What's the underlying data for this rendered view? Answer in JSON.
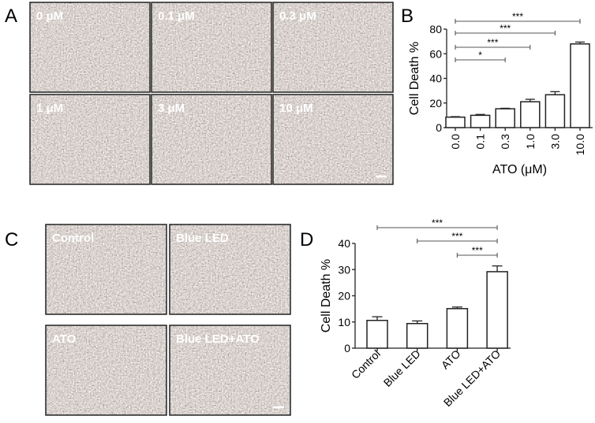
{
  "panels": {
    "A": {
      "letter": "A",
      "images": [
        "0 μM",
        "0.1 μM",
        "0.3 μM",
        "1 μM",
        "3 μM",
        "10 μM"
      ]
    },
    "C": {
      "letter": "C",
      "images": [
        "Control",
        "Blue LED",
        "ATO",
        "Blue LED+ATO"
      ]
    },
    "B": {
      "letter": "B"
    },
    "D": {
      "letter": "D"
    }
  },
  "chart_data": [
    {
      "panel": "B",
      "type": "bar",
      "categories": [
        "0.0",
        "0.1",
        "0.3",
        "1.0",
        "3.0",
        "10.0"
      ],
      "values": [
        8.5,
        10.0,
        15.3,
        21.0,
        26.7,
        68.0
      ],
      "errors": [
        0.4,
        0.7,
        0.4,
        2.0,
        2.5,
        1.5
      ],
      "xlabel": "ATO (μM)",
      "ylabel": "Cell Death %",
      "ylim": [
        0,
        80
      ],
      "yticks": [
        0,
        20,
        40,
        60,
        80
      ],
      "significance": [
        {
          "from": 0,
          "to": 5,
          "label": "***"
        },
        {
          "from": 0,
          "to": 4,
          "label": "***"
        },
        {
          "from": 0,
          "to": 3,
          "label": "***"
        },
        {
          "from": 0,
          "to": 2,
          "label": "*"
        }
      ]
    },
    {
      "panel": "D",
      "type": "bar",
      "categories": [
        "Control",
        "Blue LED",
        "ATO",
        "Blue LED+ATO"
      ],
      "values": [
        10.6,
        9.4,
        15.1,
        29.2
      ],
      "errors": [
        1.4,
        1.0,
        0.6,
        2.2
      ],
      "xlabel": "",
      "ylabel": "Cell Death %",
      "ylim": [
        0,
        40
      ],
      "yticks": [
        0,
        10,
        20,
        30,
        40
      ],
      "significance": [
        {
          "from": 0,
          "to": 3,
          "label": "***"
        },
        {
          "from": 1,
          "to": 3,
          "label": "***"
        },
        {
          "from": 2,
          "to": 3,
          "label": "***"
        }
      ]
    }
  ]
}
